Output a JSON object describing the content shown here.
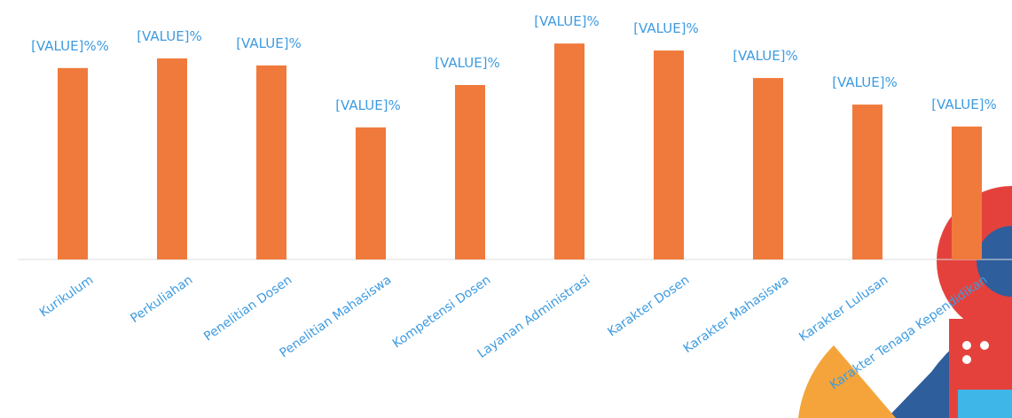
{
  "chart_data": {
    "type": "bar",
    "categories": [
      "Kurikulum",
      "Perkuliahan",
      "Penelitian Dosen",
      "Penelitian Mahasiswa",
      "Kompetensi Dosen",
      "Layanan Administrasi",
      "Karakter Dosen",
      "Karakter Mahasiswa",
      "Karakter Lulusan",
      "Karakter Tenaga Kependidikan"
    ],
    "values": [
      65.5,
      68.8,
      66.4,
      45.2,
      59.7,
      73.9,
      71.5,
      62.1,
      53,
      45.5
    ],
    "value_labels": [
      "[VALUE]%%",
      "[VALUE]%",
      "[VALUE]%",
      "[VALUE]%",
      "[VALUE]%",
      "[VALUE]%",
      "[VALUE]%",
      "[VALUE]%",
      "[VALUE]%",
      "[VALUE]%"
    ],
    "color": "#f07a3c",
    "ylim": [
      0,
      80
    ]
  }
}
